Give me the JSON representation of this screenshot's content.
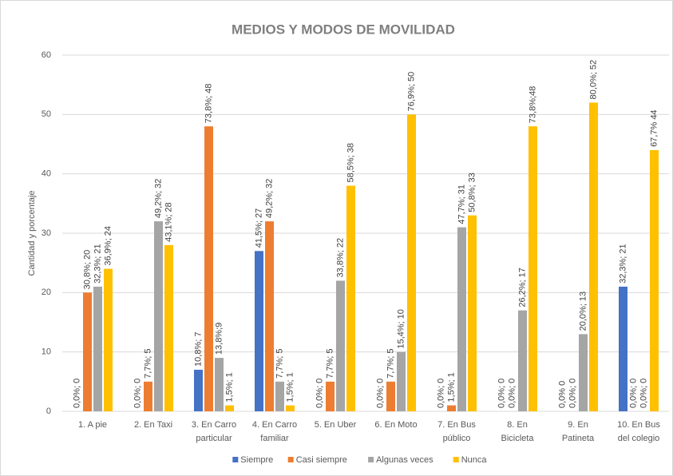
{
  "chart_data": {
    "type": "bar",
    "title": "MEDIOS Y MODOS DE MOVILIDAD",
    "ylabel": "Cantidad y porcentaje",
    "categories": [
      "1. A pie",
      "2. En Taxi",
      "3. En Carro particular",
      "4. En Carro familiar",
      "5. En Uber",
      "6. En Moto",
      "7. En Bus público",
      "8. En Bicicleta",
      "9. En Patineta",
      "10. En Bus del colegio"
    ],
    "series": [
      {
        "name": "Siempre",
        "color": "#4472c4",
        "values": [
          0,
          0,
          7,
          27,
          0,
          0,
          0,
          0,
          0,
          21
        ],
        "value_labels": [
          "0,0%; 0",
          "0,0%; 0",
          "10,8%; 7",
          "41,5%; 27",
          "0,0%; 0",
          "0,0%; 0",
          "0,0%; 0",
          "0,0%; 0",
          "0,0% 0",
          "32,3%; 21"
        ]
      },
      {
        "name": "Casi siempre",
        "color": "#ed7d31",
        "values": [
          20,
          5,
          48,
          32,
          5,
          5,
          1,
          0,
          0,
          0
        ],
        "value_labels": [
          "30,8%; 20",
          "7,7%; 5",
          "73,8%; 48",
          "49,2%; 32",
          "7,7%; 5",
          "7,7%; 5",
          "1,5%; 1",
          "0,0%; 0",
          "0,0%; 0",
          "0,0%; 0"
        ]
      },
      {
        "name": "Algunas veces",
        "color": "#a5a5a5",
        "values": [
          21,
          32,
          9,
          5,
          22,
          10,
          31,
          17,
          13,
          0
        ],
        "value_labels": [
          "32,3%; 21",
          "49,2%; 32",
          "13,8%;9",
          "7,7%; 5",
          "33,8%; 22",
          "15,4%; 10",
          "47,7%; 31",
          "26,2%; 17",
          "20,0%; 13",
          "0,0%; 0"
        ]
      },
      {
        "name": "Nunca",
        "color": "#ffc000",
        "values": [
          24,
          28,
          1,
          1,
          38,
          50,
          33,
          48,
          52,
          44
        ],
        "value_labels": [
          "36,9%; 24",
          "43,1%; 28",
          "1,5%; 1",
          "1,5%; 1",
          "58,5%; 38",
          "76,9%; 50",
          "50,8%; 33",
          "73,8%;48",
          "80,0%; 52",
          "67,7% 44"
        ]
      }
    ],
    "ylim": [
      0,
      60
    ],
    "yticks": [
      0,
      10,
      20,
      30,
      40,
      50,
      60
    ],
    "grid": true,
    "legend": "bottom"
  }
}
